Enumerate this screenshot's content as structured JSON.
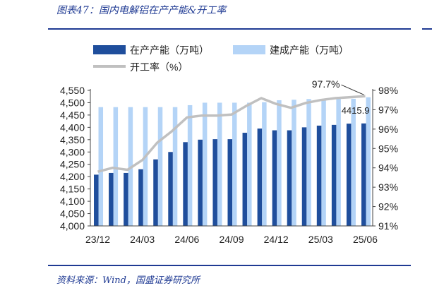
{
  "figure_title": "图表47：国内电解铝在产产能&开工率",
  "source": "资料来源：Wind，国盛证券研究所",
  "colors": {
    "frame": "#1f3a93",
    "capacity_bar": "#1f4e9c",
    "built_bar": "#b4d4f7",
    "rate_line": "#c0c0c0"
  },
  "chart_data": {
    "type": "bar",
    "categories": [
      "23/12",
      "24/01",
      "24/02",
      "24/03",
      "24/04",
      "24/05",
      "24/06",
      "24/07",
      "24/08",
      "24/09",
      "24/10",
      "24/11",
      "24/12",
      "25/01",
      "25/02",
      "25/03",
      "25/04",
      "25/05",
      "25/06"
    ],
    "tick_labels": [
      "23/12",
      "24/03",
      "24/06",
      "24/09",
      "24/12",
      "25/03",
      "25/06"
    ],
    "legend": [
      "在产产能（万吨）",
      "建成产能（万吨）",
      "开工率（%）"
    ],
    "series": [
      {
        "name": "在产产能（万吨）",
        "type": "bar",
        "axis": "left",
        "values": [
          4208,
          4215,
          4215,
          4230,
          4270,
          4300,
          4340,
          4350,
          4352,
          4352,
          4378,
          4395,
          4388,
          4388,
          4400,
          4407,
          4410,
          4415,
          4415.9
        ]
      },
      {
        "name": "建成产能（万吨）",
        "type": "bar",
        "axis": "left",
        "values": [
          4482,
          4482,
          4482,
          4482,
          4482,
          4482,
          4490,
          4500,
          4500,
          4500,
          4500,
          4502,
          4510,
          4512,
          4515,
          4515,
          4515,
          4516,
          4522
        ]
      },
      {
        "name": "开工率（%）",
        "type": "line",
        "axis": "right",
        "values": [
          93.8,
          94.0,
          93.9,
          94.4,
          95.3,
          95.9,
          96.6,
          96.7,
          96.7,
          96.75,
          97.2,
          97.6,
          97.3,
          97.1,
          97.35,
          97.5,
          97.6,
          97.65,
          97.7
        ]
      }
    ],
    "left_axis": {
      "min": 4000,
      "max": 4550,
      "ticks": [
        "4,000",
        "4,050",
        "4,100",
        "4,150",
        "4,200",
        "4,250",
        "4,300",
        "4,350",
        "4,400",
        "4,450",
        "4,500",
        "4,550"
      ]
    },
    "right_axis": {
      "min": 91,
      "max": 98,
      "ticks": [
        "91%",
        "92%",
        "93%",
        "94%",
        "95%",
        "96%",
        "97%",
        "98%"
      ]
    },
    "annotations": [
      "97.7%",
      "4415.9"
    ],
    "grid": false,
    "legend_position": "top"
  }
}
